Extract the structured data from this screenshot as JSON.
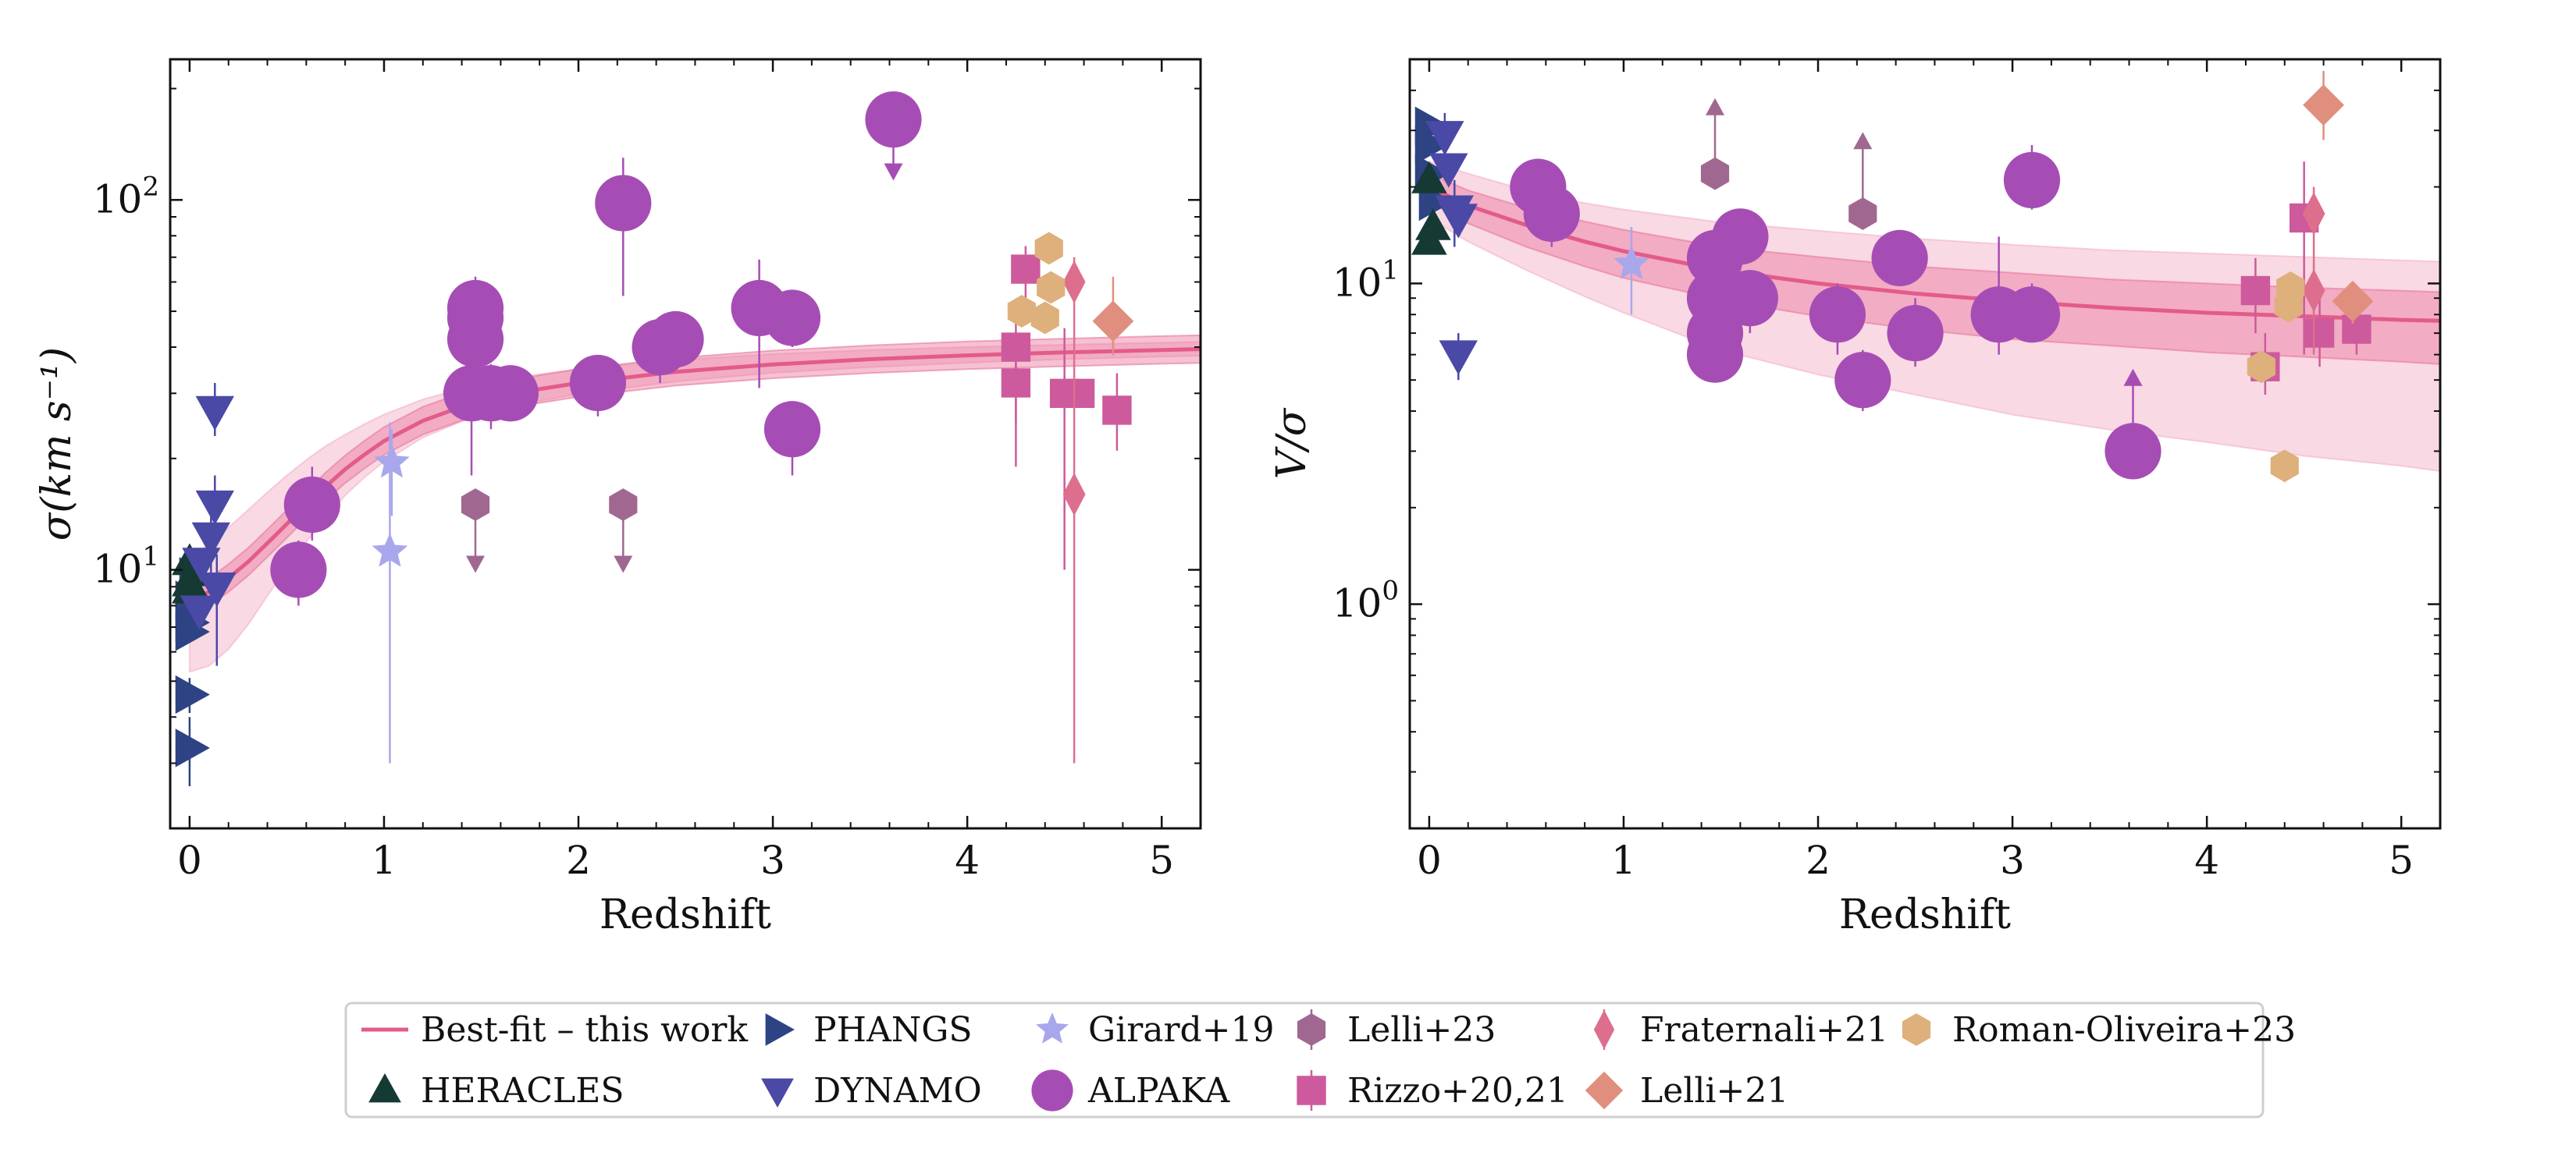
{
  "figure": {
    "x_tick_labels": [
      "0",
      "1",
      "2",
      "3",
      "4",
      "5"
    ]
  },
  "colors": {
    "bestfit": "#e35b8a",
    "band_inner": "#e8769d",
    "band_outer": "#f3b3c8",
    "PHANGS": "#2e4384",
    "HERACLES": "#153a34",
    "DYNAMO": "#4a49a6",
    "ALPAKA": "#a64db5",
    "Girard+19": "#a9a7ec",
    "Rizzo+20,21": "#cd5a9c",
    "Lelli+23": "#a06890",
    "Fraternali+21": "#de6e8e",
    "Lelli+21": "#e08f7f",
    "Roman-Oliveira+23": "#ddb07c"
  },
  "legend": {
    "entries": [
      {
        "key": "bestfit",
        "label": "Best-fit – this work",
        "marker": "line"
      },
      {
        "key": "HERACLES",
        "label": "HERACLES",
        "marker": "triangle-up"
      },
      {
        "key": "PHANGS",
        "label": "PHANGS",
        "marker": "triangle-right"
      },
      {
        "key": "DYNAMO",
        "label": "DYNAMO",
        "marker": "triangle-down"
      },
      {
        "key": "Girard+19",
        "label": "Girard+19",
        "marker": "star"
      },
      {
        "key": "ALPAKA",
        "label": "ALPAKA",
        "marker": "circle"
      },
      {
        "key": "Lelli+23",
        "label": "Lelli+23",
        "marker": "hexagon"
      },
      {
        "key": "Rizzo+20,21",
        "label": "Rizzo+20,21",
        "marker": "square"
      },
      {
        "key": "Fraternali+21",
        "label": "Fraternali+21",
        "marker": "thin-diamond"
      },
      {
        "key": "Lelli+21",
        "label": "Lelli+21",
        "marker": "diamond"
      },
      {
        "key": "Roman-Oliveira+23",
        "label": "Roman-Oliveira+23",
        "marker": "hexagon"
      }
    ]
  },
  "chart_data": [
    {
      "type": "scatter",
      "id": "sigma",
      "xlabel": "Redshift",
      "ylabel": "σ(km s⁻¹)",
      "yscale": "log",
      "xlim": [
        -0.1,
        5.2
      ],
      "ylim": [
        2,
        240
      ],
      "y_tick_labels": [
        {
          "value": 10,
          "base": "10",
          "exp": "1"
        },
        {
          "value": 100,
          "base": "10",
          "exp": "2"
        }
      ],
      "bestfit": {
        "x": [
          0,
          0.1,
          0.2,
          0.3,
          0.4,
          0.5,
          0.6,
          0.7,
          0.8,
          0.9,
          1.0,
          1.2,
          1.4,
          1.6,
          1.8,
          2.0,
          2.5,
          3.0,
          3.5,
          4.0,
          4.5,
          5.0,
          5.2
        ],
        "y": [
          8.3,
          8.7,
          9.5,
          10.5,
          11.8,
          13.3,
          15,
          16.8,
          18.7,
          20.5,
          22.3,
          25.3,
          27.6,
          29.4,
          30.8,
          32,
          34.3,
          35.9,
          37.1,
          38,
          38.7,
          39.3,
          39.5
        ],
        "inner_factor": 1.09,
        "outer_lower": [
          5.3,
          5.5,
          6.1,
          7.1,
          8.5,
          10.1,
          11.9,
          13.8,
          15.9,
          17.8,
          19.6,
          22.8,
          25.2,
          27.1,
          28.6,
          29.9,
          32.3,
          34.1,
          35.3,
          36.3,
          37.1,
          37.7,
          37.9
        ],
        "outer_upper": [
          10.8,
          11.7,
          13,
          14.5,
          16.2,
          18,
          19.8,
          21.6,
          23.2,
          24.8,
          26.3,
          28.9,
          30.9,
          32.6,
          33.8,
          34.9,
          36.9,
          38.3,
          39.3,
          40,
          40.6,
          41.1,
          41.3
        ]
      },
      "series": [
        {
          "name": "PHANGS",
          "marker": "triangle-right",
          "points": [
            {
              "x": 0.0,
              "y": 7.2
            },
            {
              "x": 0.0,
              "y": 6.8
            },
            {
              "x": 0.0,
              "y": 4.6,
              "err": [
                4.1,
                5.1
              ]
            },
            {
              "x": 0.0,
              "y": 3.3,
              "err": [
                2.6,
                4.0
              ]
            },
            {
              "x": 0.02,
              "y": 9.6
            },
            {
              "x": 0.0,
              "y": 8.3
            }
          ]
        },
        {
          "name": "HERACLES",
          "marker": "triangle-up",
          "points": [
            {
              "x": 0.0,
              "y": 10.5
            },
            {
              "x": 0.0,
              "y": 9.2
            },
            {
              "x": 0.02,
              "y": 9.8
            },
            {
              "x": 0.0,
              "y": 8.8
            }
          ]
        },
        {
          "name": "DYNAMO",
          "marker": "triangle-down",
          "points": [
            {
              "x": 0.13,
              "y": 27,
              "err": [
                23,
                32
              ]
            },
            {
              "x": 0.13,
              "y": 15,
              "err": [
                12,
                18
              ]
            },
            {
              "x": 0.11,
              "y": 12.3,
              "err": [
                9,
                14
              ]
            },
            {
              "x": 0.14,
              "y": 9.0,
              "err": [
                5.5,
                11
              ]
            },
            {
              "x": 0.06,
              "y": 10.5
            },
            {
              "x": 0.05,
              "y": 7.8
            }
          ]
        },
        {
          "name": "Girard+19",
          "marker": "star",
          "points": [
            {
              "x": 1.04,
              "y": 19.5,
              "err": [
                14,
                24
              ]
            },
            {
              "x": 1.03,
              "y": 11.2,
              "err": [
                3,
                25
              ]
            }
          ]
        },
        {
          "name": "ALPAKA",
          "marker": "circle",
          "points": [
            {
              "x": 0.56,
              "y": 10.0,
              "err": [
                8,
                12
              ]
            },
            {
              "x": 0.63,
              "y": 15,
              "err": [
                12,
                19
              ]
            },
            {
              "x": 1.47,
              "y": 51,
              "err": [
                40,
                62
              ]
            },
            {
              "x": 1.47,
              "y": 48
            },
            {
              "x": 1.47,
              "y": 42,
              "err": [
                32,
                50
              ]
            },
            {
              "x": 1.45,
              "y": 30,
              "err": [
                18,
                38
              ]
            },
            {
              "x": 1.55,
              "y": 30,
              "err": [
                24,
                36
              ]
            },
            {
              "x": 1.65,
              "y": 30
            },
            {
              "x": 2.1,
              "y": 32,
              "err": [
                26,
                36
              ]
            },
            {
              "x": 2.23,
              "y": 98,
              "err": [
                55,
                130
              ]
            },
            {
              "x": 2.42,
              "y": 40,
              "err": [
                32,
                48
              ]
            },
            {
              "x": 2.5,
              "y": 42,
              "err": [
                35,
                49
              ]
            },
            {
              "x": 2.93,
              "y": 51,
              "err": [
                31,
                69
              ]
            },
            {
              "x": 3.1,
              "y": 48,
              "err": [
                40,
                54
              ]
            },
            {
              "x": 3.1,
              "y": 24,
              "err": [
                18,
                28
              ]
            },
            {
              "x": 3.62,
              "y": 165,
              "ulim": 115
            }
          ]
        },
        {
          "name": "Lelli+23",
          "marker": "hexagon",
          "points": [
            {
              "x": 1.47,
              "y": 15,
              "ulim": 10
            },
            {
              "x": 2.23,
              "y": 15,
              "ulim": 10
            }
          ]
        },
        {
          "name": "Rizzo+20,21",
          "marker": "square",
          "points": [
            {
              "x": 4.25,
              "y": 40,
              "err": [
                25,
                52
              ]
            },
            {
              "x": 4.25,
              "y": 32,
              "err": [
                19,
                42
              ]
            },
            {
              "x": 4.3,
              "y": 65,
              "err": [
                50,
                75
              ]
            },
            {
              "x": 4.5,
              "y": 30,
              "err": [
                10,
                45
              ]
            },
            {
              "x": 4.58,
              "y": 30
            },
            {
              "x": 4.77,
              "y": 27,
              "err": [
                21,
                34
              ]
            }
          ]
        },
        {
          "name": "Fraternali+21",
          "marker": "thin-diamond",
          "points": [
            {
              "x": 4.55,
              "y": 60,
              "err": [
                30,
                70
              ]
            },
            {
              "x": 4.55,
              "y": 16,
              "err": [
                3,
                30
              ]
            }
          ]
        },
        {
          "name": "Lelli+21",
          "marker": "diamond",
          "points": [
            {
              "x": 4.75,
              "y": 47,
              "err": [
                38,
                62
              ]
            }
          ]
        },
        {
          "name": "Roman-Oliveira+23",
          "marker": "hexagon",
          "points": [
            {
              "x": 4.42,
              "y": 74
            },
            {
              "x": 4.43,
              "y": 58
            },
            {
              "x": 4.28,
              "y": 50
            },
            {
              "x": 4.4,
              "y": 48
            }
          ]
        }
      ]
    },
    {
      "type": "scatter",
      "id": "v_sigma",
      "xlabel": "Redshift",
      "ylabel": "V/σ",
      "yscale": "log",
      "xlim": [
        -0.1,
        5.2
      ],
      "ylim": [
        0.2,
        50
      ],
      "y_tick_labels": [
        {
          "value": 1,
          "base": "10",
          "exp": "0"
        },
        {
          "value": 10,
          "base": "10",
          "exp": "1"
        }
      ],
      "bestfit": {
        "x": [
          0,
          0.2,
          0.5,
          0.8,
          1.0,
          1.5,
          2.0,
          2.5,
          3.0,
          3.5,
          4.0,
          4.5,
          5.0,
          5.2
        ],
        "y": [
          20,
          17.5,
          15.2,
          13.5,
          12.6,
          11,
          10,
          9.3,
          8.8,
          8.4,
          8.1,
          7.9,
          7.7,
          7.65
        ],
        "inner_lower": [
          18,
          15.4,
          13,
          11.3,
          10.4,
          8.9,
          7.9,
          7.2,
          6.7,
          6.4,
          6.1,
          5.9,
          5.7,
          5.6
        ],
        "inner_upper": [
          22,
          19.5,
          17.2,
          15.6,
          14.7,
          13,
          12.1,
          11.3,
          10.8,
          10.3,
          10,
          9.7,
          9.5,
          9.4
        ],
        "outer_lower": [
          16,
          13.5,
          11,
          9.1,
          8.1,
          6.2,
          5.2,
          4.5,
          3.9,
          3.5,
          3.2,
          2.9,
          2.7,
          2.6
        ],
        "outer_upper": [
          24,
          22,
          19.5,
          17.8,
          17,
          15.5,
          14.6,
          13.8,
          13.2,
          12.7,
          12.4,
          12.1,
          11.8,
          11.7
        ]
      },
      "series": [
        {
          "name": "PHANGS",
          "marker": "triangle-right",
          "points": [
            {
              "x": 0.0,
              "y": 31
            },
            {
              "x": 0.0,
              "y": 27
            },
            {
              "x": 0.0,
              "y": 22
            },
            {
              "x": 0.02,
              "y": 18
            }
          ]
        },
        {
          "name": "HERACLES",
          "marker": "triangle-up",
          "points": [
            {
              "x": 0.0,
              "y": 21
            },
            {
              "x": 0.02,
              "y": 15
            },
            {
              "x": 0.0,
              "y": 13.5
            }
          ]
        },
        {
          "name": "DYNAMO",
          "marker": "triangle-down",
          "points": [
            {
              "x": 0.08,
              "y": 29,
              "err": [
                24,
                34
              ]
            },
            {
              "x": 0.1,
              "y": 23
            },
            {
              "x": 0.13,
              "y": 17,
              "err": [
                13,
                21
              ]
            },
            {
              "x": 0.15,
              "y": 16
            },
            {
              "x": 0.15,
              "y": 6,
              "err": [
                5,
                7
              ]
            }
          ]
        },
        {
          "name": "Girard+19",
          "marker": "star",
          "points": [
            {
              "x": 1.04,
              "y": 11.5,
              "err": [
                8,
                15
              ]
            }
          ]
        },
        {
          "name": "ALPAKA",
          "marker": "circle",
          "points": [
            {
              "x": 0.56,
              "y": 20,
              "err": [
                16,
                24
              ]
            },
            {
              "x": 0.63,
              "y": 16.5,
              "err": [
                13,
                20
              ]
            },
            {
              "x": 1.47,
              "y": 12,
              "err": [
                9.5,
                15
              ]
            },
            {
              "x": 1.47,
              "y": 9
            },
            {
              "x": 1.47,
              "y": 7,
              "err": [
                5.5,
                9
              ]
            },
            {
              "x": 1.47,
              "y": 6,
              "err": [
                5,
                7
              ]
            },
            {
              "x": 1.6,
              "y": 14,
              "err": [
                11,
                17
              ]
            },
            {
              "x": 1.65,
              "y": 9,
              "err": [
                7,
                11
              ]
            },
            {
              "x": 2.1,
              "y": 8,
              "err": [
                6,
                10
              ]
            },
            {
              "x": 2.23,
              "y": 5,
              "err": [
                4,
                6.2
              ]
            },
            {
              "x": 2.42,
              "y": 12,
              "err": [
                10,
                14
              ]
            },
            {
              "x": 2.5,
              "y": 7,
              "err": [
                5.5,
                9
              ]
            },
            {
              "x": 2.93,
              "y": 8,
              "err": [
                6,
                14
              ]
            },
            {
              "x": 3.1,
              "y": 8,
              "err": [
                7,
                10
              ]
            },
            {
              "x": 3.1,
              "y": 21,
              "err": [
                17,
                27
              ]
            },
            {
              "x": 3.62,
              "y": 3,
              "llim": 5.3
            }
          ]
        },
        {
          "name": "Lelli+23",
          "marker": "hexagon",
          "points": [
            {
              "x": 1.47,
              "y": 22,
              "llim": 37
            },
            {
              "x": 2.23,
              "y": 16.5,
              "llim": 29
            }
          ]
        },
        {
          "name": "Rizzo+20,21",
          "marker": "square",
          "points": [
            {
              "x": 4.25,
              "y": 9.5,
              "err": [
                7,
                12
              ]
            },
            {
              "x": 4.3,
              "y": 5.5,
              "err": [
                4.5,
                7
              ]
            },
            {
              "x": 4.5,
              "y": 16,
              "err": [
                6,
                24
              ]
            },
            {
              "x": 4.58,
              "y": 7,
              "err": [
                5.5,
                9
              ]
            },
            {
              "x": 4.77,
              "y": 7.2,
              "err": [
                6,
                8.5
              ]
            }
          ]
        },
        {
          "name": "Fraternali+21",
          "marker": "thin-diamond",
          "points": [
            {
              "x": 4.55,
              "y": 9.5,
              "err": [
                6,
                12
              ]
            },
            {
              "x": 4.55,
              "y": 16.5,
              "err": [
                12,
                20
              ]
            }
          ]
        },
        {
          "name": "Lelli+21",
          "marker": "diamond",
          "points": [
            {
              "x": 4.75,
              "y": 8.8,
              "err": [
                7.5,
                10
              ]
            },
            {
              "x": 4.6,
              "y": 36,
              "err": [
                28,
                46
              ]
            }
          ]
        },
        {
          "name": "Roman-Oliveira+23",
          "marker": "hexagon",
          "points": [
            {
              "x": 4.43,
              "y": 9.7
            },
            {
              "x": 4.42,
              "y": 8.5
            },
            {
              "x": 4.28,
              "y": 5.5
            },
            {
              "x": 4.4,
              "y": 2.7,
              "err": [
                2.4,
                3.0
              ]
            }
          ]
        }
      ]
    }
  ]
}
